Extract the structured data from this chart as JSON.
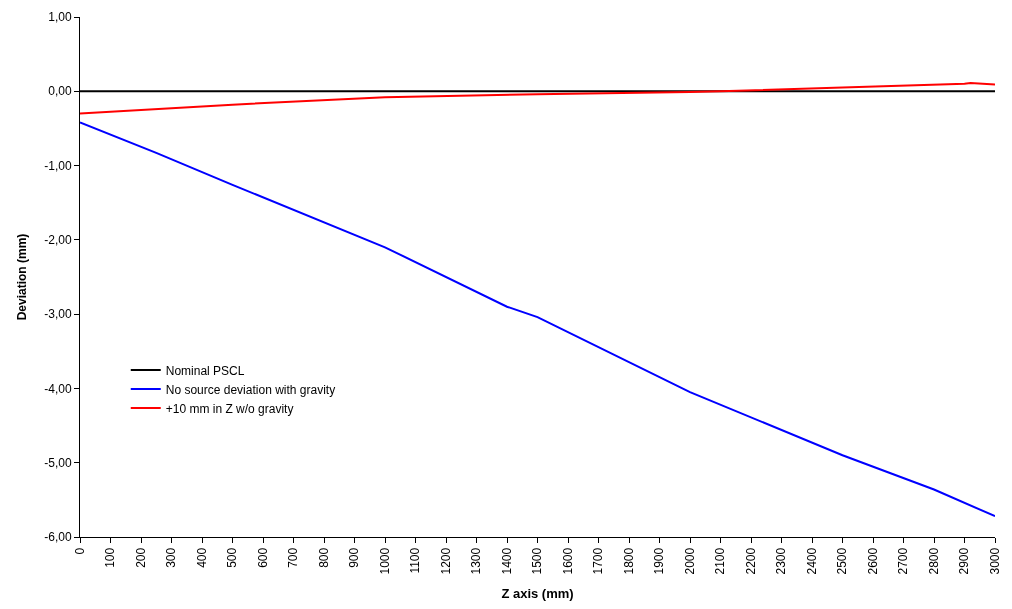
{
  "chart_data": {
    "type": "line",
    "xlabel": "Z axis (mm)",
    "ylabel": "Deviation (mm)",
    "xlim": [
      0,
      3000
    ],
    "xticks": [
      0,
      100,
      200,
      300,
      400,
      500,
      600,
      700,
      800,
      900,
      1000,
      1100,
      1200,
      1300,
      1400,
      1500,
      1600,
      1700,
      1800,
      1900,
      2000,
      2100,
      2200,
      2300,
      2400,
      2500,
      2600,
      2700,
      2800,
      2900,
      3000
    ],
    "ylim": [
      -6,
      1
    ],
    "yticks": [
      {
        "value": -6,
        "label": "-6,00"
      },
      {
        "value": -5,
        "label": "-5,00"
      },
      {
        "value": -4,
        "label": "-4,00"
      },
      {
        "value": -3,
        "label": "-3,00"
      },
      {
        "value": -2,
        "label": "-2,00"
      },
      {
        "value": -1,
        "label": "-1,00"
      },
      {
        "value": 0,
        "label": "0,00"
      },
      {
        "value": 1,
        "label": "1,00"
      }
    ],
    "legend": "bottom left",
    "marker": "none",
    "line_style": "solid",
    "series": [
      {
        "name": "Nominal PSCL",
        "color": "#000000",
        "x": [
          0,
          3000
        ],
        "values": [
          0,
          0
        ]
      },
      {
        "name": "No source deviation with gravity",
        "color": "#0000ff",
        "x": [
          0,
          250,
          500,
          1000,
          1400,
          1500,
          2000,
          2500,
          2800,
          3000
        ],
        "values": [
          -0.42,
          -0.83,
          -1.26,
          -2.1,
          -2.9,
          -3.04,
          -4.05,
          -4.9,
          -5.36,
          -5.72
        ]
      },
      {
        "name": "+10 mm in Z w/o gravity",
        "color": "#ff0000",
        "x": [
          0,
          500,
          1000,
          1500,
          2000,
          2100,
          2500,
          2900,
          2920,
          3000
        ],
        "values": [
          -0.3,
          -0.18,
          -0.08,
          -0.04,
          -0.01,
          0.0,
          0.05,
          0.1,
          0.11,
          0.09
        ]
      }
    ]
  }
}
